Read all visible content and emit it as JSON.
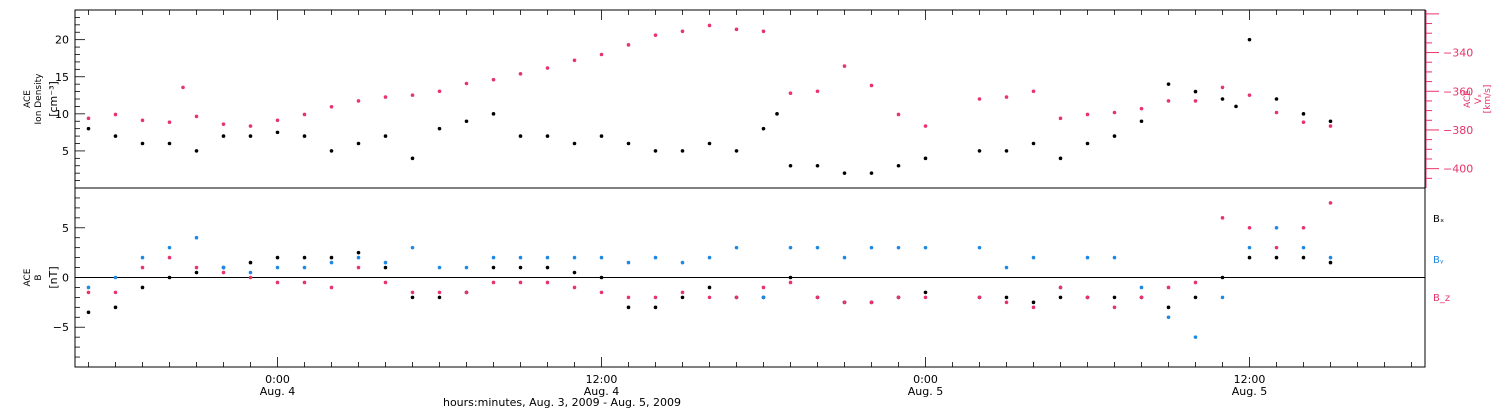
{
  "x_axis": {
    "ticks": [
      {
        "t": 0,
        "time": "0:00",
        "day": "Aug. 4"
      },
      {
        "t": 12,
        "time": "12:00",
        "day": "Aug. 4"
      },
      {
        "t": 24,
        "time": "0:00",
        "day": "Aug. 5"
      },
      {
        "t": 36,
        "time": "12:00",
        "day": "Aug. 5"
      }
    ],
    "title": "hours:minutes, Aug.  3, 2009 - Aug.  5, 2009"
  },
  "colors": {
    "black": "#000000",
    "pink": "#e8336b",
    "blue": "#1e88e5"
  },
  "chart_data": [
    {
      "type": "scatter",
      "panel": "top",
      "xlim": [
        "2009-08-03 16:30",
        "2009-08-05 18:30"
      ],
      "left_axis": {
        "title_lines": [
          "ACE",
          "Ion Density"
        ],
        "unit": "[cm⁻³]",
        "ylim": [
          0,
          24
        ],
        "ticks": [
          5,
          10,
          15,
          20
        ]
      },
      "right_axis": {
        "title_lines": [
          "ACE",
          "Vₓ"
        ],
        "unit": "[km/s]",
        "ylim": [
          -410,
          -318
        ],
        "ticks": [
          -400,
          -380,
          -360,
          -340
        ]
      },
      "series": [
        {
          "axis": "left",
          "color": "black",
          "x": [
            "2009-08-03 17:00",
            "2009-08-03 18:00",
            "2009-08-03 19:00",
            "2009-08-03 20:00",
            "2009-08-03 21:00",
            "2009-08-03 22:00",
            "2009-08-03 23:00",
            "2009-08-04 00:00",
            "2009-08-04 01:00",
            "2009-08-04 02:00",
            "2009-08-04 03:00",
            "2009-08-04 04:00",
            "2009-08-04 05:00",
            "2009-08-04 06:00",
            "2009-08-04 07:00",
            "2009-08-04 08:00",
            "2009-08-04 09:00",
            "2009-08-04 10:00",
            "2009-08-04 11:00",
            "2009-08-04 12:00",
            "2009-08-04 13:00",
            "2009-08-04 14:00",
            "2009-08-04 15:00",
            "2009-08-04 16:00",
            "2009-08-04 17:00",
            "2009-08-04 18:00",
            "2009-08-04 18:30",
            "2009-08-04 19:00",
            "2009-08-04 20:00",
            "2009-08-04 21:00",
            "2009-08-04 22:00",
            "2009-08-04 23:00",
            "2009-08-05 00:00",
            "2009-08-05 02:00",
            "2009-08-05 03:00",
            "2009-08-05 04:00",
            "2009-08-05 05:00",
            "2009-08-05 06:00",
            "2009-08-05 07:00",
            "2009-08-05 08:00",
            "2009-08-05 09:00",
            "2009-08-05 10:00",
            "2009-08-05 11:00",
            "2009-08-05 11:30",
            "2009-08-05 12:00",
            "2009-08-05 13:00",
            "2009-08-05 14:00",
            "2009-08-05 15:00"
          ],
          "y": [
            8,
            7,
            6,
            6,
            5,
            7,
            7,
            7.5,
            7,
            5,
            6,
            7,
            4,
            8,
            9,
            10,
            7,
            7,
            6,
            7,
            6,
            5,
            5,
            6,
            5,
            8,
            10,
            3,
            3,
            2,
            2,
            3,
            4,
            5,
            5,
            6,
            4,
            6,
            7,
            9,
            14,
            13,
            12,
            11,
            20,
            12,
            10,
            9
          ]
        },
        {
          "axis": "right",
          "color": "pink",
          "x": [
            "2009-08-03 17:00",
            "2009-08-03 18:00",
            "2009-08-03 19:00",
            "2009-08-03 20:00",
            "2009-08-03 20:30",
            "2009-08-03 21:00",
            "2009-08-03 22:00",
            "2009-08-03 23:00",
            "2009-08-04 00:00",
            "2009-08-04 01:00",
            "2009-08-04 02:00",
            "2009-08-04 03:00",
            "2009-08-04 04:00",
            "2009-08-04 05:00",
            "2009-08-04 06:00",
            "2009-08-04 07:00",
            "2009-08-04 08:00",
            "2009-08-04 09:00",
            "2009-08-04 10:00",
            "2009-08-04 11:00",
            "2009-08-04 12:00",
            "2009-08-04 13:00",
            "2009-08-04 14:00",
            "2009-08-04 15:00",
            "2009-08-04 16:00",
            "2009-08-04 17:00",
            "2009-08-04 18:00",
            "2009-08-04 19:00",
            "2009-08-04 20:00",
            "2009-08-04 21:00",
            "2009-08-04 22:00",
            "2009-08-04 23:00",
            "2009-08-05 00:00",
            "2009-08-05 02:00",
            "2009-08-05 03:00",
            "2009-08-05 04:00",
            "2009-08-05 05:00",
            "2009-08-05 06:00",
            "2009-08-05 07:00",
            "2009-08-05 08:00",
            "2009-08-05 09:00",
            "2009-08-05 10:00",
            "2009-08-05 11:00",
            "2009-08-05 12:00",
            "2009-08-05 13:00",
            "2009-08-05 14:00",
            "2009-08-05 15:00"
          ],
          "y": [
            -374,
            -372,
            -375,
            -376,
            -358,
            -373,
            -377,
            -378,
            -375,
            -372,
            -368,
            -365,
            -363,
            -362,
            -360,
            -356,
            -354,
            -351,
            -348,
            -344,
            -341,
            -336,
            -331,
            -329,
            -326,
            -328,
            -329,
            -361,
            -360,
            -347,
            -357,
            -372,
            -378,
            -364,
            -363,
            -360,
            -374,
            -372,
            -371,
            -369,
            -365,
            -365,
            -358,
            -362,
            -371,
            -376,
            -378
          ]
        }
      ]
    },
    {
      "type": "scatter",
      "panel": "bottom",
      "xlim": [
        "2009-08-03 16:30",
        "2009-08-05 18:30"
      ],
      "left_axis": {
        "title_lines": [
          "ACE",
          "B"
        ],
        "unit": "[nT]",
        "ylim": [
          -9,
          9
        ],
        "ticks": [
          -5,
          0,
          5
        ]
      },
      "legend": [
        "Bₓ",
        "Bᵧ",
        "B_z"
      ],
      "series": [
        {
          "name": "Bₓ",
          "color": "black",
          "x": [
            "2009-08-03 17:00",
            "2009-08-03 18:00",
            "2009-08-03 19:00",
            "2009-08-03 20:00",
            "2009-08-03 21:00",
            "2009-08-03 22:00",
            "2009-08-03 23:00",
            "2009-08-04 00:00",
            "2009-08-04 01:00",
            "2009-08-04 02:00",
            "2009-08-04 03:00",
            "2009-08-04 04:00",
            "2009-08-04 05:00",
            "2009-08-04 06:00",
            "2009-08-04 07:00",
            "2009-08-04 08:00",
            "2009-08-04 09:00",
            "2009-08-04 10:00",
            "2009-08-04 11:00",
            "2009-08-04 12:00",
            "2009-08-04 13:00",
            "2009-08-04 14:00",
            "2009-08-04 15:00",
            "2009-08-04 16:00",
            "2009-08-04 17:00",
            "2009-08-04 18:00",
            "2009-08-04 19:00",
            "2009-08-04 20:00",
            "2009-08-04 21:00",
            "2009-08-04 22:00",
            "2009-08-04 23:00",
            "2009-08-05 00:00",
            "2009-08-05 02:00",
            "2009-08-05 03:00",
            "2009-08-05 04:00",
            "2009-08-05 05:00",
            "2009-08-05 06:00",
            "2009-08-05 07:00",
            "2009-08-05 08:00",
            "2009-08-05 09:00",
            "2009-08-05 10:00",
            "2009-08-05 11:00",
            "2009-08-05 12:00",
            "2009-08-05 13:00",
            "2009-08-05 14:00",
            "2009-08-05 15:00"
          ],
          "y": [
            -3.5,
            -3,
            -1,
            0,
            0.5,
            1,
            1.5,
            2,
            2,
            2,
            2.5,
            1,
            -2,
            -2,
            -1.5,
            1,
            1,
            1,
            0.5,
            0,
            -3,
            -3,
            -2,
            -1,
            -2,
            -2,
            0,
            -2,
            -2.5,
            -2.5,
            -2,
            -1.5,
            -2,
            -2,
            -2.5,
            -2,
            -2,
            -2,
            -2,
            -3,
            -2,
            0,
            2,
            2,
            2,
            1.5
          ]
        },
        {
          "name": "Bᵧ",
          "color": "blue",
          "x": [
            "2009-08-03 17:00",
            "2009-08-03 18:00",
            "2009-08-03 19:00",
            "2009-08-03 20:00",
            "2009-08-03 21:00",
            "2009-08-03 22:00",
            "2009-08-03 23:00",
            "2009-08-04 00:00",
            "2009-08-04 01:00",
            "2009-08-04 02:00",
            "2009-08-04 03:00",
            "2009-08-04 04:00",
            "2009-08-04 05:00",
            "2009-08-04 06:00",
            "2009-08-04 07:00",
            "2009-08-04 08:00",
            "2009-08-04 09:00",
            "2009-08-04 10:00",
            "2009-08-04 11:00",
            "2009-08-04 12:00",
            "2009-08-04 13:00",
            "2009-08-04 14:00",
            "2009-08-04 15:00",
            "2009-08-04 16:00",
            "2009-08-04 17:00",
            "2009-08-04 18:00",
            "2009-08-04 19:00",
            "2009-08-04 20:00",
            "2009-08-04 21:00",
            "2009-08-04 22:00",
            "2009-08-04 23:00",
            "2009-08-05 00:00",
            "2009-08-05 02:00",
            "2009-08-05 03:00",
            "2009-08-05 04:00",
            "2009-08-05 05:00",
            "2009-08-05 06:00",
            "2009-08-05 07:00",
            "2009-08-05 08:00",
            "2009-08-05 09:00",
            "2009-08-05 10:00",
            "2009-08-05 11:00",
            "2009-08-05 12:00",
            "2009-08-05 13:00",
            "2009-08-05 14:00",
            "2009-08-05 15:00"
          ],
          "y": [
            -1,
            0,
            2,
            3,
            4,
            1,
            0.5,
            1,
            1,
            1.5,
            2,
            1.5,
            3,
            1,
            1,
            2,
            2,
            2,
            2,
            2,
            1.5,
            2,
            1.5,
            2,
            3,
            -2,
            3,
            3,
            2,
            3,
            3,
            3,
            3,
            1,
            2,
            -1,
            2,
            2,
            -1,
            -4,
            -6,
            -2,
            3,
            5,
            3,
            2
          ]
        },
        {
          "name": "B_z",
          "color": "pink",
          "x": [
            "2009-08-03 17:00",
            "2009-08-03 18:00",
            "2009-08-03 19:00",
            "2009-08-03 20:00",
            "2009-08-03 21:00",
            "2009-08-03 22:00",
            "2009-08-03 23:00",
            "2009-08-04 00:00",
            "2009-08-04 01:00",
            "2009-08-04 02:00",
            "2009-08-04 03:00",
            "2009-08-04 04:00",
            "2009-08-04 05:00",
            "2009-08-04 06:00",
            "2009-08-04 07:00",
            "2009-08-04 08:00",
            "2009-08-04 09:00",
            "2009-08-04 10:00",
            "2009-08-04 11:00",
            "2009-08-04 12:00",
            "2009-08-04 13:00",
            "2009-08-04 14:00",
            "2009-08-04 15:00",
            "2009-08-04 16:00",
            "2009-08-04 17:00",
            "2009-08-04 18:00",
            "2009-08-04 19:00",
            "2009-08-04 20:00",
            "2009-08-04 21:00",
            "2009-08-04 22:00",
            "2009-08-04 23:00",
            "2009-08-05 00:00",
            "2009-08-05 02:00",
            "2009-08-05 03:00",
            "2009-08-05 04:00",
            "2009-08-05 05:00",
            "2009-08-05 06:00",
            "2009-08-05 07:00",
            "2009-08-05 08:00",
            "2009-08-05 09:00",
            "2009-08-05 10:00",
            "2009-08-05 11:00",
            "2009-08-05 12:00",
            "2009-08-05 13:00",
            "2009-08-05 14:00",
            "2009-08-05 15:00"
          ],
          "y": [
            -1.5,
            -1.5,
            1,
            2,
            1,
            0.5,
            0,
            -0.5,
            -0.5,
            -1,
            1,
            -0.5,
            -1.5,
            -1.5,
            -1.5,
            -0.5,
            -0.5,
            -0.5,
            -1,
            -1.5,
            -2,
            -2,
            -1.5,
            -2,
            -2,
            -1,
            -0.5,
            -2,
            -2.5,
            -2.5,
            -2,
            -2,
            -2,
            -2.5,
            -3,
            -1,
            -2,
            -3,
            -2,
            -1,
            -0.5,
            6,
            5,
            3,
            5,
            7.5
          ]
        }
      ]
    }
  ]
}
